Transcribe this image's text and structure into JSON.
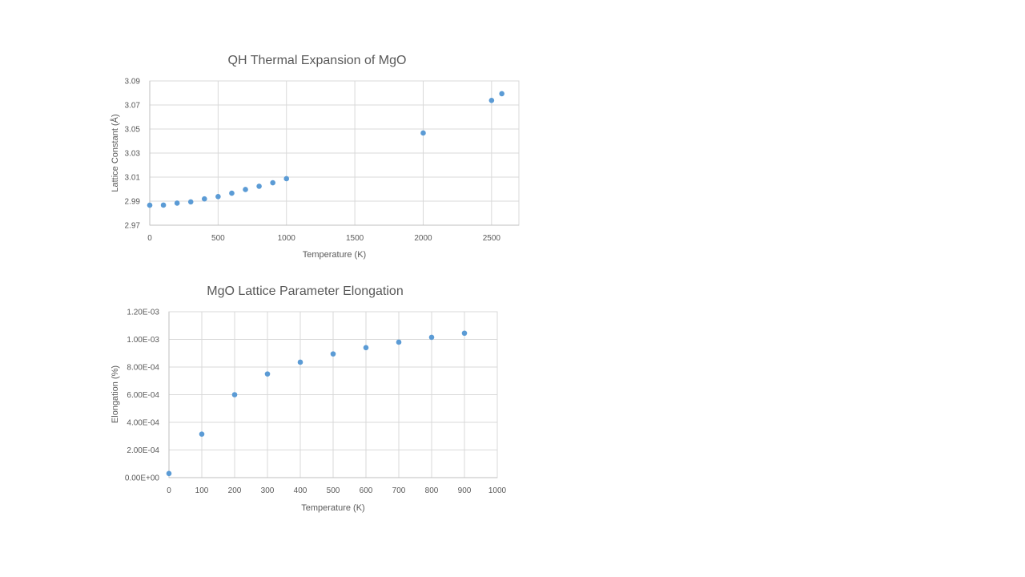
{
  "chart_data": [
    {
      "type": "scatter",
      "title": "QH Thermal Expansion of MgO",
      "xlabel": "Temperature  (K)",
      "ylabel": "Lattice  Constant (Å)",
      "xlim": [
        0,
        2700
      ],
      "ylim": [
        2.97,
        3.09
      ],
      "x_ticks": [
        0,
        500,
        1000,
        1500,
        2000,
        2500
      ],
      "x_tick_labels": [
        "0",
        "500",
        "1000",
        "1500",
        "2000",
        "2500"
      ],
      "y_ticks": [
        2.97,
        2.99,
        3.01,
        3.03,
        3.05,
        3.07,
        3.09
      ],
      "y_tick_labels": [
        "2.97",
        "2.99",
        "3.01",
        "3.03",
        "3.05",
        "3.07",
        "3.09"
      ],
      "grid": true,
      "color": "#5b9bd5",
      "points": [
        {
          "x": 0,
          "y": 2.9866
        },
        {
          "x": 100,
          "y": 2.9867
        },
        {
          "x": 200,
          "y": 2.9884
        },
        {
          "x": 300,
          "y": 2.9894
        },
        {
          "x": 400,
          "y": 2.9919
        },
        {
          "x": 500,
          "y": 2.9938
        },
        {
          "x": 600,
          "y": 2.9966
        },
        {
          "x": 700,
          "y": 2.9997
        },
        {
          "x": 800,
          "y": 3.0024
        },
        {
          "x": 900,
          "y": 3.0053
        },
        {
          "x": 1000,
          "y": 3.0087
        },
        {
          "x": 2000,
          "y": 3.0467
        },
        {
          "x": 2500,
          "y": 3.0738
        },
        {
          "x": 2575,
          "y": 3.0794
        }
      ]
    },
    {
      "type": "scatter",
      "title": "MgO Lattice  Parameter Elongation",
      "xlabel": "Temperature  (K)",
      "ylabel": "Elongation (%)",
      "xlim": [
        0,
        1000
      ],
      "ylim": [
        0,
        0.0012
      ],
      "x_ticks": [
        0,
        100,
        200,
        300,
        400,
        500,
        600,
        700,
        800,
        900,
        1000
      ],
      "x_tick_labels": [
        "0",
        "100",
        "200",
        "300",
        "400",
        "500",
        "600",
        "700",
        "800",
        "900",
        "1000"
      ],
      "y_ticks": [
        0,
        0.0002,
        0.0004,
        0.0006,
        0.0008,
        0.001,
        0.0012
      ],
      "y_tick_labels": [
        "0.00E+00",
        "2.00E-04",
        "4.00E-04",
        "6.00E-04",
        "8.00E-04",
        "1.00E-03",
        "1.20E-03"
      ],
      "grid": true,
      "color": "#5b9bd5",
      "points": [
        {
          "x": 0,
          "y": 3e-05
        },
        {
          "x": 100,
          "y": 0.000315
        },
        {
          "x": 200,
          "y": 0.0006
        },
        {
          "x": 300,
          "y": 0.00075
        },
        {
          "x": 400,
          "y": 0.000835
        },
        {
          "x": 500,
          "y": 0.000895
        },
        {
          "x": 600,
          "y": 0.00094
        },
        {
          "x": 700,
          "y": 0.00098
        },
        {
          "x": 800,
          "y": 0.001015
        },
        {
          "x": 900,
          "y": 0.001045
        }
      ]
    }
  ]
}
